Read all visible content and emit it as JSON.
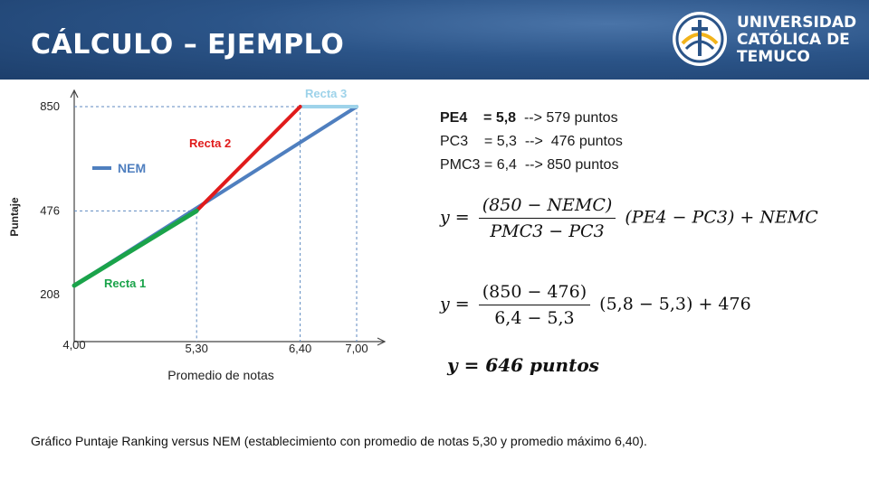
{
  "header": {
    "title": "CÁLCULO – EJEMPLO",
    "logo_lines": [
      "UNIVERSIDAD",
      "CATÓLICA DE",
      "TEMUCO"
    ],
    "bg_color": "#2b5488"
  },
  "chart_data": {
    "type": "line",
    "xlabel": "Promedio de notas",
    "ylabel": "Puntaje",
    "x_ticks": [
      "4,00",
      "5,30",
      "6,40",
      "7,00"
    ],
    "y_ticks": [
      "208",
      "476",
      "850"
    ],
    "xlim": [
      4.0,
      7.0
    ],
    "ylim": [
      208,
      850
    ],
    "legend": {
      "label": "NEM",
      "color": "#4f7fbf",
      "position": "upper-left"
    },
    "series": [
      {
        "name": "NEM",
        "color": "#4f7fbf",
        "points": [
          [
            4.0,
            208
          ],
          [
            7.0,
            850
          ]
        ]
      },
      {
        "name": "Recta 1",
        "color": "#1aa34a",
        "points": [
          [
            4.0,
            208
          ],
          [
            5.3,
            476
          ]
        ]
      },
      {
        "name": "Recta 2",
        "color": "#e01b1b",
        "points": [
          [
            5.3,
            476
          ],
          [
            6.4,
            850
          ]
        ]
      },
      {
        "name": "Recta 3",
        "color": "#9ed3ea",
        "points": [
          [
            6.4,
            850
          ],
          [
            7.0,
            850
          ]
        ]
      }
    ]
  },
  "equations": {
    "line1_label": "PE4    = 5,8",
    "line1_value": "  --> 579 puntos",
    "line2": "PC3    = 5,3  -->  476 puntos",
    "line3": "PMC3 = 6,4  --> 850 puntos",
    "f1": {
      "lhs": "y =",
      "num": "(850 − NEMC)",
      "den": "PMC3 − PC3",
      "rhs": "(PE4 − PC3)  + NEMC"
    },
    "f2": {
      "lhs": "y =",
      "num": "(850 − 476)",
      "den": "6,4 − 5,3",
      "rhs": "(5,8 − 5,3) + 476"
    },
    "f3": "y = 646 puntos"
  },
  "caption": "Gráfico Puntaje Ranking versus NEM (establecimiento con promedio de notas 5,30 y promedio máximo 6,40)."
}
